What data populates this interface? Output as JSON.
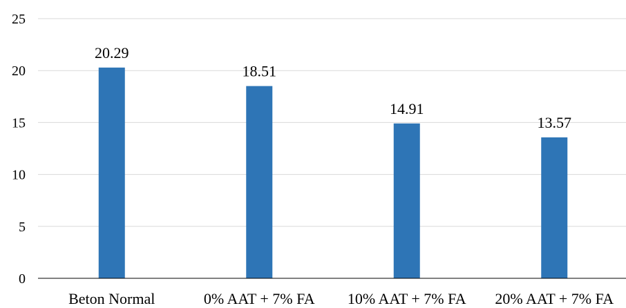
{
  "chart_data": {
    "type": "bar",
    "title": "",
    "xlabel": "",
    "ylabel": "",
    "categories": [
      "Beton Normal",
      "0% AAT + 7% FA",
      "10% AAT + 7% FA",
      "20% AAT + 7% FA"
    ],
    "values": [
      20.29,
      18.51,
      14.91,
      13.57
    ],
    "data_labels": [
      "20.29",
      "18.51",
      "14.91",
      "13.57"
    ],
    "ylim": [
      0,
      25
    ],
    "yticks": [
      0,
      5,
      10,
      15,
      20,
      25
    ],
    "ytick_labels": [
      "0",
      "5",
      "10",
      "15",
      "20",
      "25"
    ],
    "grid": true,
    "legend": "none",
    "colors": {
      "bar": "#2E75B6",
      "grid": "#D9D9D9",
      "axis": "#000000",
      "text": "#000000"
    }
  }
}
